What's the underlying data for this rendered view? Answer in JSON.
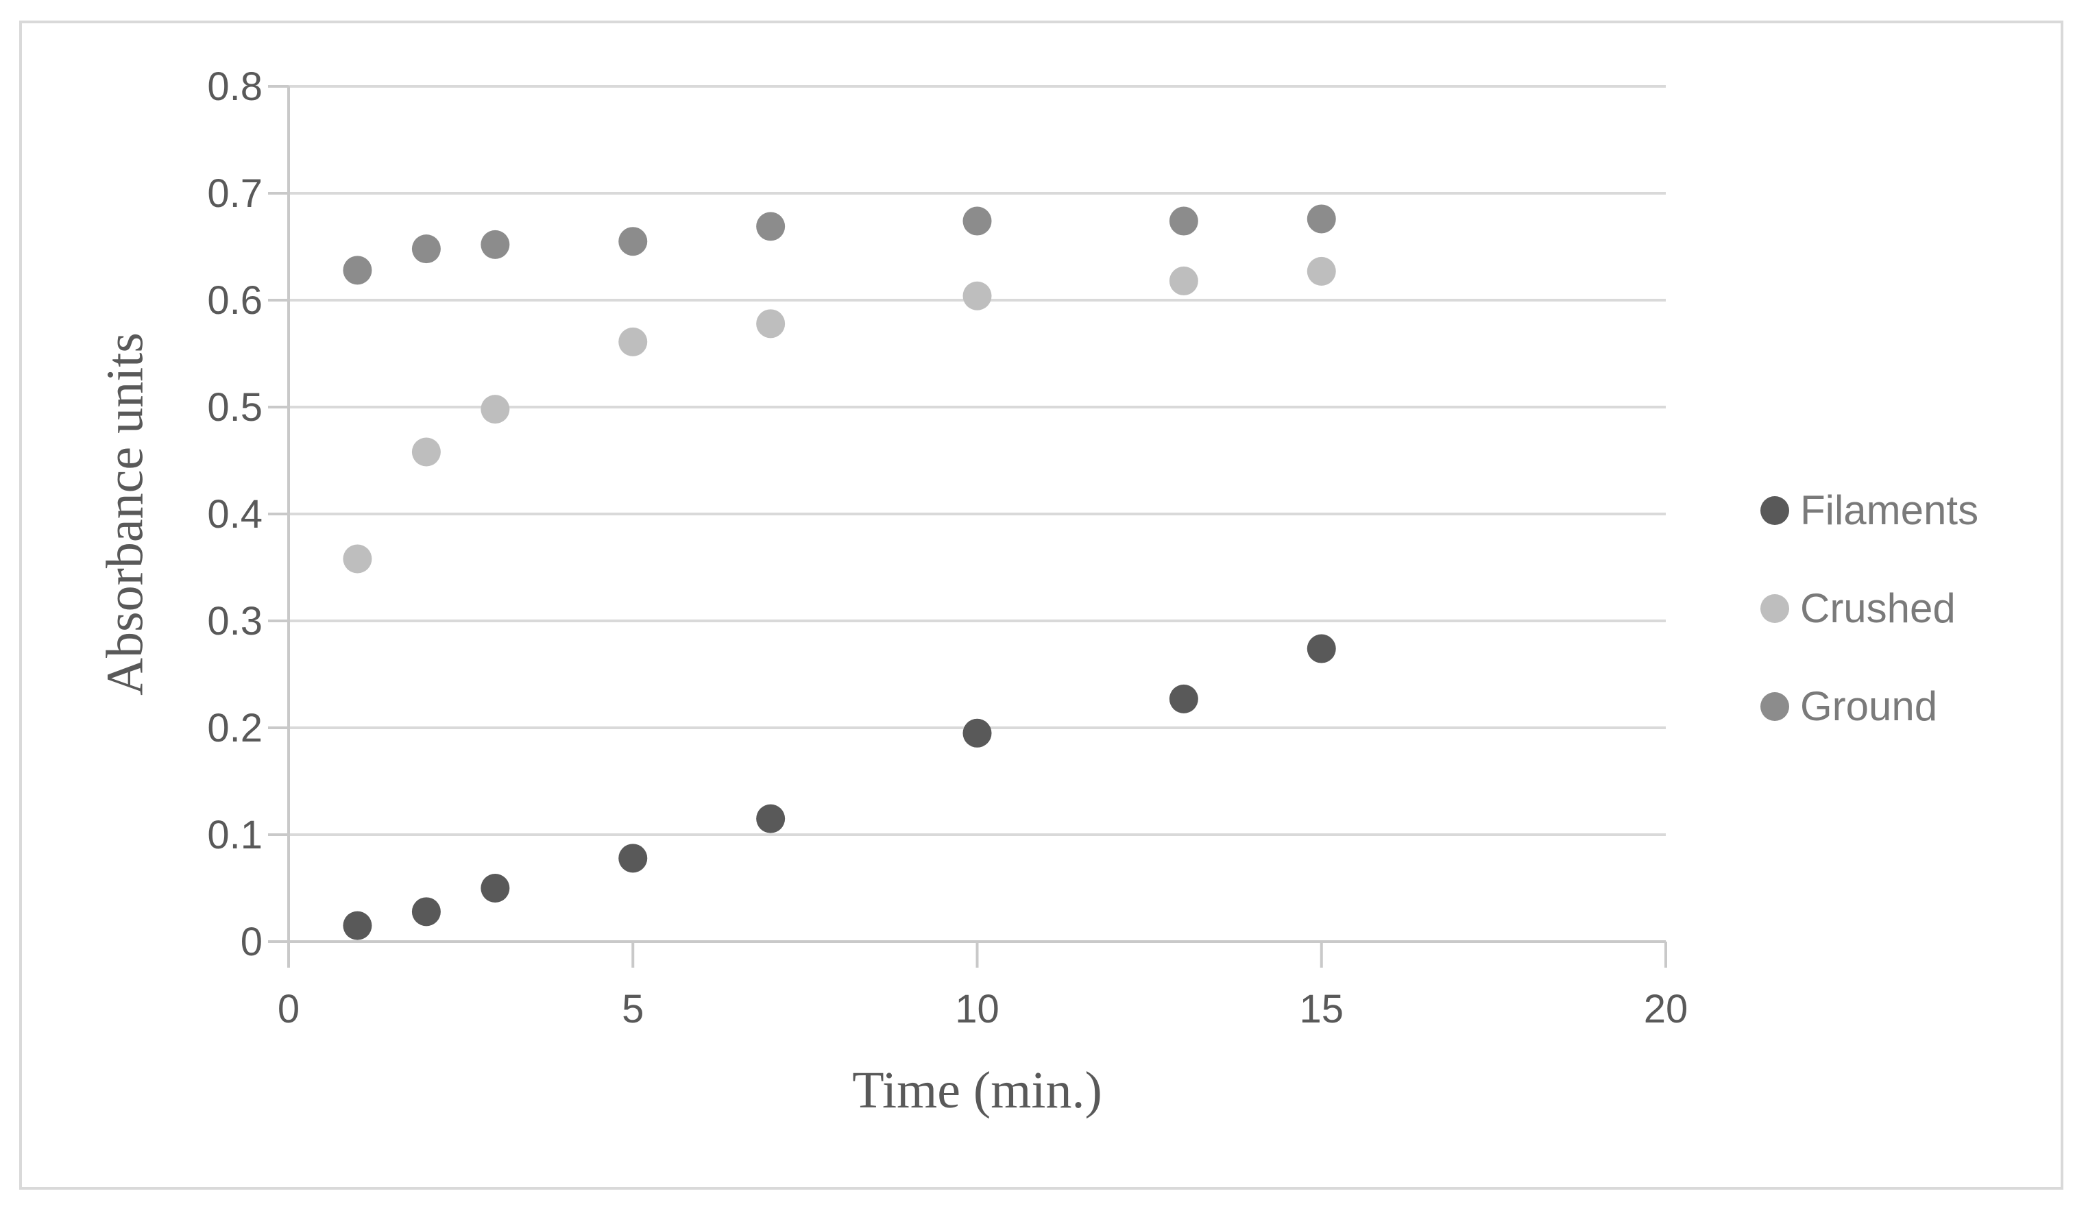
{
  "figure": {
    "background": "#FFFFFF",
    "border_color": "#D9D9D9"
  },
  "colors": {
    "gridline": "#D9D9D9",
    "axis_line": "#C9C9C9",
    "tick_label": "#595959",
    "axis_title": "#595959",
    "legend_text": "#7A7A7A"
  },
  "chart_data": {
    "type": "scatter",
    "xlabel": "Time (min.)",
    "ylabel": "Absorbance units",
    "xlim": [
      0,
      20
    ],
    "ylim": [
      0,
      0.8
    ],
    "x_ticks": [
      0,
      5,
      10,
      15,
      20
    ],
    "x_tick_labels": [
      "0",
      "5",
      "10",
      "15",
      "20"
    ],
    "y_ticks": [
      0,
      0.1,
      0.2,
      0.3,
      0.4,
      0.5,
      0.6,
      0.7,
      0.8
    ],
    "y_tick_labels": [
      "0",
      "0.1",
      "0.2",
      "0.3",
      "0.4",
      "0.5",
      "0.6",
      "0.7",
      "0.8"
    ],
    "grid": "horizontal",
    "legend_position": "right",
    "x": [
      1,
      2,
      3,
      5,
      7,
      10,
      13,
      15
    ],
    "series": [
      {
        "name": "Filaments",
        "color": "#595959",
        "values": [
          0.015,
          0.028,
          0.05,
          0.078,
          0.115,
          0.195,
          0.227,
          0.274
        ]
      },
      {
        "name": "Crushed",
        "color": "#BEBEBE",
        "values": [
          0.358,
          0.458,
          0.498,
          0.561,
          0.578,
          0.604,
          0.618,
          0.627
        ]
      },
      {
        "name": "Ground",
        "color": "#8C8C8C",
        "values": [
          0.628,
          0.648,
          0.652,
          0.655,
          0.669,
          0.674,
          0.674,
          0.676
        ]
      }
    ]
  }
}
